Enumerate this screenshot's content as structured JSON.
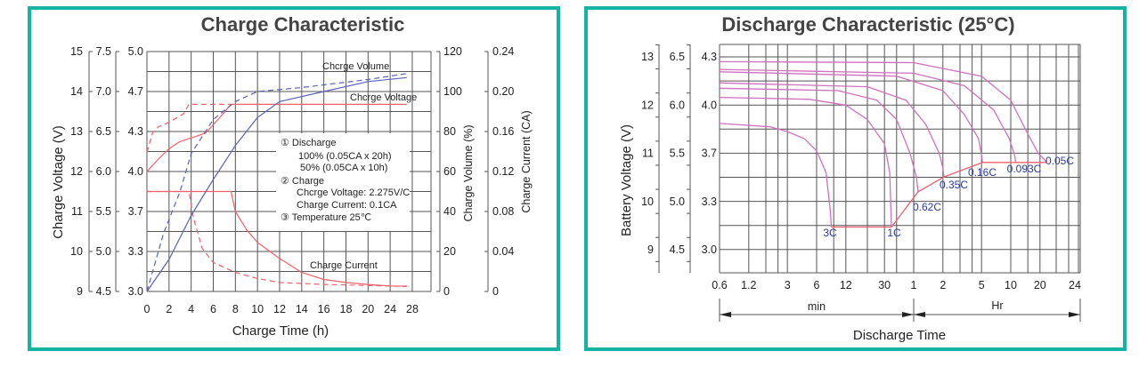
{
  "left": {
    "title": "Charge Characteristic",
    "ylabel": "Charge Voltage (V)",
    "xlabel": "Charge Time (h)",
    "y2label": "Charge Volume (%)",
    "y3label": "Charge Current (CA)",
    "curve_labels": {
      "volume": "Chcrge Volume",
      "voltage": "Chcrge Voltage",
      "current": "Charge Current"
    },
    "legend": [
      "①   Discharge",
      "100%  (0.05CA x 20h)",
      "50%   (0.05CA x 10h)",
      "②  Charge",
      "Chcrge Voltage: 2.275V/C",
      "Charge Current: 0.1CA",
      "③  Temperature 25℃"
    ]
  },
  "right": {
    "title": "Discharge Characteristic (25°C)",
    "ylabel": "Battery Voltage (V)",
    "xlabel": "Discharge Time",
    "min_label": "min",
    "hr_label": "Hr"
  },
  "colors": {
    "border": "#16b3a2",
    "red": "#f0606a",
    "blue": "#5a62b8",
    "magenta": "#d070c0",
    "rate_label": "#2a3a9c"
  },
  "chart_data": [
    {
      "type": "line",
      "title": "Charge Characteristic",
      "xlabel": "Charge Time (h)",
      "x_ticks": [
        "0",
        "2",
        "4",
        "6",
        "8",
        "10",
        "12",
        "14",
        "16",
        "18",
        "20",
        "24",
        "28"
      ],
      "x_tick_values": [
        0,
        2,
        4,
        6,
        8,
        10,
        12,
        14,
        16,
        18,
        20,
        24,
        28
      ],
      "y_axes": [
        {
          "name": "12V",
          "ticks": [
            "15",
            "14",
            "13",
            "12",
            "11",
            "10",
            "9"
          ]
        },
        {
          "name": "6V",
          "ticks": [
            "7.5",
            "7.0",
            "6.5",
            "6.0",
            "5.5",
            "5.0",
            "4.5"
          ]
        },
        {
          "name": "4V",
          "ticks": [
            "5.0",
            "4.7",
            "4.3",
            "4.0",
            "3.7",
            "3.3",
            "3.0"
          ],
          "ylim": [
            3.0,
            5.0
          ]
        },
        {
          "name": "Charge Volume (%)",
          "ticks": [
            "120",
            "100",
            "80",
            "60",
            "40",
            "20",
            "0"
          ],
          "ylim": [
            0,
            120
          ]
        },
        {
          "name": "Charge Current (CA)",
          "ticks": [
            "0.24",
            "0.20",
            "0.16",
            "0.12",
            "0.08",
            "0.04",
            "0"
          ],
          "ylim": [
            0,
            0.24
          ]
        }
      ],
      "series": [
        {
          "name": "Charge Voltage 100%",
          "axis": "4V",
          "style": "solid",
          "color": "#f0606a",
          "x": [
            0,
            1,
            2,
            3,
            4,
            5.3,
            6.5,
            7.6,
            27
          ],
          "y": [
            4.0,
            4.1,
            4.19,
            4.25,
            4.28,
            4.32,
            4.44,
            4.56,
            4.56
          ]
        },
        {
          "name": "Charge Voltage 50%",
          "axis": "4V",
          "style": "dashed",
          "color": "#f0606a",
          "x": [
            0,
            0.5,
            1,
            2,
            3.3,
            3.8,
            7.6
          ],
          "y": [
            4.16,
            4.32,
            4.37,
            4.41,
            4.48,
            4.56,
            4.56
          ]
        },
        {
          "name": "Charge Current 100%",
          "axis": "Charge Current (CA)",
          "style": "solid",
          "color": "#f0606a",
          "x": [
            0,
            7.6,
            8,
            9,
            10,
            12,
            14,
            16,
            18,
            20,
            24,
            27
          ],
          "y": [
            0.1,
            0.1,
            0.08,
            0.062,
            0.049,
            0.033,
            0.019,
            0.012,
            0.009,
            0.007,
            0.0055,
            0.0053
          ]
        },
        {
          "name": "Charge Current 50%",
          "axis": "Charge Current (CA)",
          "style": "dashed",
          "color": "#f0606a",
          "x": [
            0,
            3.8,
            4.2,
            5,
            6,
            8,
            10,
            12,
            16,
            20,
            27
          ],
          "y": [
            0.1,
            0.1,
            0.074,
            0.043,
            0.029,
            0.019,
            0.013,
            0.009,
            0.007,
            0.006,
            0.005
          ]
        },
        {
          "name": "Charge Volume 100%",
          "axis": "Charge Volume (%)",
          "style": "solid",
          "color": "#5a62b8",
          "x": [
            0,
            2,
            4,
            6,
            8,
            10,
            12,
            16,
            20,
            27
          ],
          "y": [
            0,
            16,
            38,
            56,
            73,
            87,
            95,
            100,
            105,
            107
          ]
        },
        {
          "name": "Charge Volume 50%",
          "axis": "Charge Volume (%)",
          "style": "dashed",
          "color": "#5a62b8",
          "x": [
            0,
            1.5,
            3,
            4,
            6,
            8,
            10,
            14,
            20,
            27
          ],
          "y": [
            0,
            29,
            50,
            69,
            86,
            95,
            100,
            102,
            106,
            109
          ]
        }
      ]
    },
    {
      "type": "line",
      "title": "Discharge Characteristic (25°C)",
      "xlabel": "Discharge Time",
      "xscale": "log",
      "x_unit": "min",
      "x_ticks": [
        "0.6",
        "1.2",
        "3",
        "6",
        "12",
        "30",
        "1",
        "2",
        "5",
        "10",
        "20",
        "24"
      ],
      "x_tick_values_min": [
        0.6,
        1.2,
        3,
        6,
        12,
        30,
        60,
        120,
        300,
        600,
        1200,
        1440
      ],
      "y_axes": [
        {
          "name": "12V",
          "ticks": [
            "13",
            "12",
            "11",
            "10",
            "9"
          ],
          "ylim": [
            8.5,
            13.3
          ]
        },
        {
          "name": "6V",
          "ticks": [
            "6.5",
            "6.0",
            "5.5",
            "5.0",
            "4.5"
          ]
        },
        {
          "name": "4V",
          "ticks": [
            "4.3",
            "4.0",
            "3.7",
            "3.3",
            "3.0"
          ]
        }
      ],
      "series": [
        {
          "name": "3C",
          "x": [
            0.6,
            2,
            3,
            4.5,
            6,
            7.5,
            8.3,
            8.5
          ],
          "y": [
            11.62,
            11.55,
            11.45,
            11.3,
            11.05,
            10.6,
            9.8,
            9.47
          ]
        },
        {
          "name": "1C",
          "x": [
            0.6,
            5,
            12,
            20,
            30,
            34,
            35.4
          ],
          "y": [
            12.16,
            12.12,
            12.0,
            11.7,
            11.2,
            10.6,
            9.47
          ]
        },
        {
          "name": "0.62C",
          "x": [
            0.6,
            10,
            25,
            40,
            55,
            64,
            66.5
          ],
          "y": [
            12.35,
            12.3,
            12.1,
            11.7,
            11.0,
            10.5,
            10.2
          ]
        },
        {
          "name": "0.35C",
          "x": [
            0.6,
            20,
            50,
            80,
            110,
            120,
            123
          ],
          "y": [
            12.46,
            12.38,
            12.1,
            11.6,
            11.0,
            10.7,
            10.51
          ]
        },
        {
          "name": "0.16C",
          "x": [
            0.6,
            40,
            120,
            200,
            280,
            300,
            307
          ],
          "y": [
            12.69,
            12.6,
            12.3,
            11.8,
            11.3,
            10.95,
            10.81
          ]
        },
        {
          "name": "0.093C",
          "x": [
            0.6,
            60,
            200,
            400,
            580,
            660,
            673
          ],
          "y": [
            12.74,
            12.66,
            12.4,
            11.9,
            11.3,
            10.95,
            10.81
          ]
        },
        {
          "name": "0.05C",
          "x": [
            0.6,
            60,
            300,
            600,
            900,
            1150,
            1230,
            1237
          ],
          "y": [
            12.9,
            12.88,
            12.6,
            12.1,
            11.4,
            11.0,
            10.85,
            10.81
          ]
        }
      ],
      "cutoff_line": {
        "x": [
          8.5,
          35.4,
          66.5,
          123,
          307,
          673,
          1237
        ],
        "y": [
          9.47,
          9.47,
          10.2,
          10.51,
          10.81,
          10.81,
          10.81
        ]
      }
    }
  ]
}
